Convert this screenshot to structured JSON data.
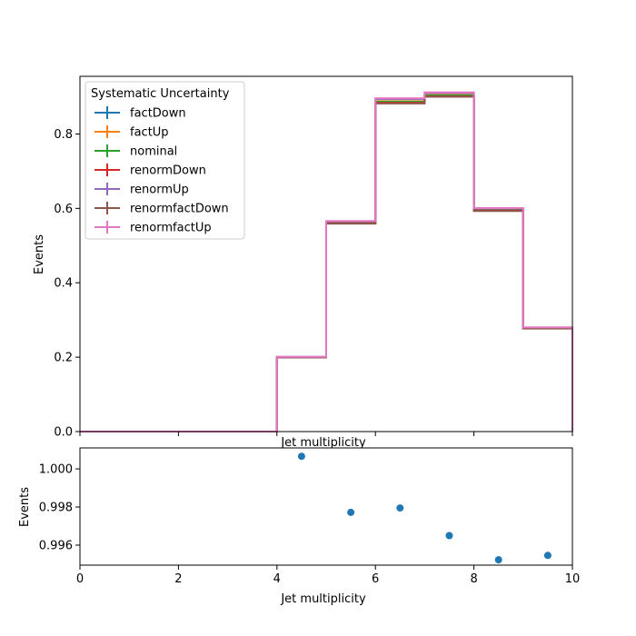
{
  "chart_data": [
    {
      "type": "line",
      "subtype": "step-histogram",
      "xlabel": "Jet multiplicity",
      "ylabel": "Events",
      "xlim": [
        0,
        10
      ],
      "ylim": [
        0,
        0.955
      ],
      "x_ticks": [
        0,
        2,
        4,
        6,
        8,
        10
      ],
      "x_tick_labels_shown": false,
      "y_ticks": [
        0.0,
        0.2,
        0.4,
        0.6,
        0.8
      ],
      "y_tick_labels": [
        "0.0",
        "0.2",
        "0.4",
        "0.6",
        "0.8"
      ],
      "bin_edges": [
        0,
        1,
        2,
        3,
        4,
        5,
        6,
        7,
        8,
        9,
        10
      ],
      "legend": {
        "title": "Systematic Uncertainty",
        "placement": "upper-left"
      },
      "series": [
        {
          "name": "factDown",
          "color": "#1f77b4",
          "values": [
            0,
            0,
            0,
            0,
            0.2,
            0.56,
            0.885,
            0.902,
            0.595,
            0.278
          ]
        },
        {
          "name": "factUp",
          "color": "#ff7f0e",
          "values": [
            0,
            0,
            0,
            0,
            0.2,
            0.562,
            0.888,
            0.905,
            0.597,
            0.279
          ]
        },
        {
          "name": "nominal",
          "color": "#2ca02c",
          "values": [
            0,
            0,
            0,
            0,
            0.2,
            0.562,
            0.887,
            0.904,
            0.596,
            0.279
          ]
        },
        {
          "name": "renormDown",
          "color": "#d62728",
          "values": [
            0,
            0,
            0,
            0,
            0.199,
            0.56,
            0.884,
            0.901,
            0.594,
            0.278
          ]
        },
        {
          "name": "renormUp",
          "color": "#9467bd",
          "values": [
            0,
            0,
            0,
            0,
            0.201,
            0.565,
            0.894,
            0.91,
            0.6,
            0.28
          ]
        },
        {
          "name": "renormfactDown",
          "color": "#8c564b",
          "values": [
            0,
            0,
            0,
            0,
            0.199,
            0.559,
            0.882,
            0.9,
            0.593,
            0.277
          ]
        },
        {
          "name": "renormfactUp",
          "color": "#e377c2",
          "values": [
            0,
            0,
            0,
            0,
            0.201,
            0.566,
            0.896,
            0.912,
            0.601,
            0.28
          ]
        }
      ]
    },
    {
      "type": "scatter",
      "xlabel": "Jet multiplicity",
      "ylabel": "Events",
      "xlim": [
        0,
        10
      ],
      "ylim": [
        0.99495,
        1.0011
      ],
      "x_ticks": [
        0,
        2,
        4,
        6,
        8,
        10
      ],
      "x_tick_labels": [
        "0",
        "2",
        "4",
        "6",
        "8",
        "10"
      ],
      "y_ticks": [
        0.996,
        0.998,
        1.0
      ],
      "y_tick_labels": [
        "0.996",
        "0.998",
        "1.000"
      ],
      "color": "#1f77b4",
      "points": [
        {
          "x": 4.5,
          "y": 1.00066
        },
        {
          "x": 5.5,
          "y": 0.99772
        },
        {
          "x": 6.5,
          "y": 0.99795
        },
        {
          "x": 7.5,
          "y": 0.9965
        },
        {
          "x": 8.5,
          "y": 0.99523
        },
        {
          "x": 9.5,
          "y": 0.99546
        }
      ]
    }
  ]
}
